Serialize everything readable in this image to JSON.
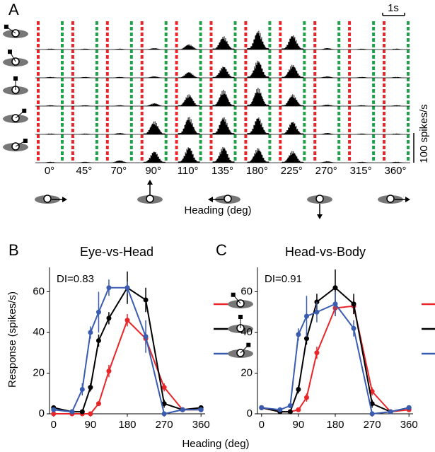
{
  "chart_data": [
    {
      "type": "psth",
      "panel_label": "A",
      "categories": [
        "0°",
        "45°",
        "70°",
        "90°",
        "110°",
        "135°",
        "180°",
        "225°",
        "270°",
        "315°",
        "360°"
      ],
      "xlabel": "Heading (deg)",
      "rows": [
        {
          "values": [
            3,
            3,
            3,
            5,
            18,
            45,
            65,
            50,
            5,
            3,
            3
          ]
        },
        {
          "values": [
            3,
            3,
            3,
            5,
            20,
            40,
            60,
            45,
            5,
            3,
            3
          ]
        },
        {
          "values": [
            3,
            3,
            3,
            10,
            40,
            55,
            62,
            40,
            5,
            3,
            3
          ]
        },
        {
          "values": [
            3,
            3,
            5,
            45,
            60,
            60,
            60,
            45,
            5,
            3,
            3
          ]
        },
        {
          "values": [
            3,
            3,
            8,
            40,
            55,
            55,
            50,
            40,
            5,
            3,
            3
          ]
        }
      ],
      "color": "#000000",
      "onset_color": "#e8262a",
      "offset_color": "#1fa24a",
      "time_scalebar_label": "1s",
      "scalebar": {
        "value": 100,
        "label": "100 spikes/s"
      }
    },
    {
      "type": "line",
      "panel_label": "B",
      "title": "Eye-vs-Head",
      "annotation": "DI=0.83",
      "x": [
        0,
        45,
        70,
        90,
        110,
        135,
        180,
        225,
        270,
        315,
        360
      ],
      "xlim": [
        -10,
        370
      ],
      "xticks": [
        0,
        90,
        180,
        270,
        360
      ],
      "ylim": [
        0,
        72
      ],
      "yticks": [
        0,
        20,
        40,
        60
      ],
      "xlabel": "Heading (deg)",
      "ylabel": "Response (spikes/s)",
      "series": [
        {
          "color": "#e8262a",
          "values": [
            0,
            0,
            0,
            0,
            5,
            21,
            46,
            37,
            13,
            2,
            2
          ],
          "errors": [
            0.5,
            0.5,
            0.5,
            0.5,
            1,
            3,
            3,
            3,
            2,
            0.5,
            0.5
          ]
        },
        {
          "color": "#000000",
          "values": [
            3,
            1,
            1,
            13,
            36,
            47,
            62,
            56,
            5,
            2,
            3
          ],
          "errors": [
            0.5,
            0.5,
            0.5,
            2,
            3,
            3,
            8,
            6,
            2,
            0.5,
            0.5
          ]
        },
        {
          "color": "#3a5cb0",
          "values": [
            2,
            1,
            12,
            40,
            50,
            62,
            62,
            38,
            0,
            2,
            2
          ],
          "errors": [
            0.5,
            0.5,
            3,
            3,
            10,
            4,
            3,
            8,
            0.5,
            0.5,
            0.5
          ]
        }
      ]
    },
    {
      "type": "line",
      "panel_label": "C",
      "title": "Head-vs-Body",
      "annotation": "DI=0.91",
      "x": [
        0,
        45,
        70,
        90,
        110,
        135,
        180,
        225,
        270,
        315,
        360
      ],
      "xlim": [
        -10,
        370
      ],
      "xticks": [
        0,
        90,
        180,
        270,
        360
      ],
      "ylim": [
        0,
        72
      ],
      "yticks": [
        0,
        20,
        40,
        60
      ],
      "series": [
        {
          "color": "#e8262a",
          "values": [
            3,
            1,
            1,
            2,
            8,
            30,
            52,
            53,
            11,
            1,
            2
          ],
          "errors": [
            0.5,
            0.5,
            0.5,
            0.5,
            2,
            3,
            4,
            4,
            2,
            0.5,
            0.5
          ]
        },
        {
          "color": "#000000",
          "values": [
            3,
            1,
            1,
            12,
            37,
            55,
            62,
            54,
            5,
            1,
            3
          ],
          "errors": [
            0.5,
            0.5,
            0.5,
            2,
            3,
            4,
            9,
            5,
            2,
            0.5,
            0.5
          ]
        },
        {
          "color": "#3a5cb0",
          "values": [
            3,
            2,
            4,
            39,
            48,
            50,
            54,
            42,
            0,
            1,
            3
          ],
          "errors": [
            0.5,
            0.5,
            1,
            3,
            10,
            5,
            6,
            4,
            0.5,
            0.5,
            0.5
          ]
        }
      ]
    }
  ]
}
